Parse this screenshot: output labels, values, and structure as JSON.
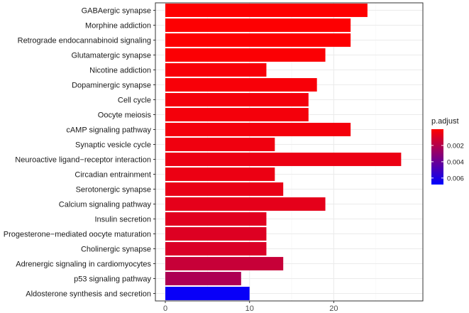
{
  "chart_data": {
    "type": "bar",
    "orientation": "horizontal",
    "title": "",
    "xlabel": "",
    "ylabel": "",
    "xlim": [
      0,
      29.4
    ],
    "x_ticks": [
      0,
      10,
      20
    ],
    "grid": true,
    "categories": [
      "GABAergic synapse",
      "Morphine addiction",
      "Retrograde endocannabinoid signaling",
      "Glutamatergic synapse",
      "Nicotine addiction",
      "Dopaminergic synapse",
      "Cell cycle",
      "Oocyte meiosis",
      "cAMP signaling pathway",
      "Synaptic vesicle cycle",
      "Neuroactive ligand−receptor interaction",
      "Circadian entrainment",
      "Serotonergic synapse",
      "Calcium signaling pathway",
      "Insulin secretion",
      "Progesterone−mediated oocyte maturation",
      "Cholinergic synapse",
      "Adrenergic signaling in cardiomyocytes",
      "p53 signaling pathway",
      "Aldosterone synthesis and secretion"
    ],
    "values": [
      24,
      22,
      22,
      19,
      12,
      18,
      17,
      17,
      22,
      13,
      28,
      13,
      14,
      19,
      12,
      12,
      12,
      14,
      9,
      10
    ],
    "p_adjust": [
      3e-05,
      5e-05,
      5e-05,
      0.0001,
      0.0002,
      0.0002,
      0.0003,
      0.0003,
      0.0003,
      0.0004,
      0.0005,
      0.0005,
      0.0006,
      0.0007,
      0.0008,
      0.0009,
      0.001,
      0.0015,
      0.0022,
      0.0066
    ],
    "legend": {
      "title": "p.adjust",
      "position": "right",
      "range": [
        0.0,
        0.0068
      ],
      "ticks": [
        0.002,
        0.004,
        0.006
      ],
      "tick_labels": [
        "0.002",
        "0.004",
        "0.006"
      ],
      "color_low": "#ff0000",
      "color_high": "#0000ff"
    }
  }
}
